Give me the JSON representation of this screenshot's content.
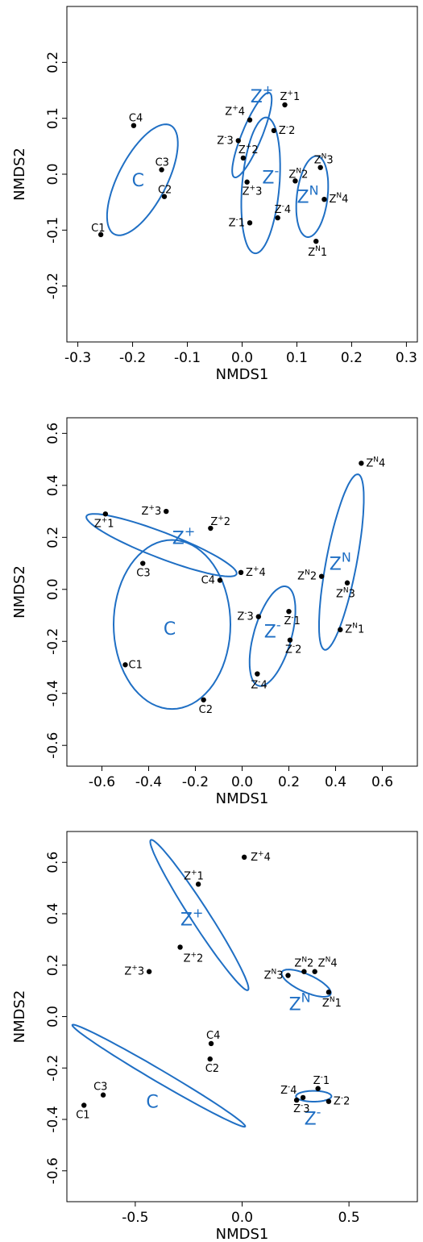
{
  "chart_data": [
    {
      "type": "scatter",
      "xlabel": "NMDS1",
      "ylabel": "NMDS2",
      "xlim": [
        -0.32,
        0.32
      ],
      "ylim": [
        -0.3,
        0.3
      ],
      "xticks": [
        "-0.3",
        "-0.2",
        "-0.1",
        "0.0",
        "0.1",
        "0.2",
        "0.3"
      ],
      "yticks": [
        "-0.2",
        "-0.1",
        "0.0",
        "0.1",
        "0.2"
      ],
      "points": [
        {
          "name": "C1",
          "x": -0.258,
          "y": -0.108
        },
        {
          "name": "C2",
          "x": -0.142,
          "y": -0.04
        },
        {
          "name": "C3",
          "x": -0.147,
          "y": 0.008
        },
        {
          "name": "C4",
          "x": -0.198,
          "y": 0.087
        },
        {
          "name": "Z+1",
          "x": 0.078,
          "y": 0.124
        },
        {
          "name": "Z+2",
          "x": 0.002,
          "y": 0.029
        },
        {
          "name": "Z+3",
          "x": 0.009,
          "y": -0.014
        },
        {
          "name": "Z+4",
          "x": 0.014,
          "y": 0.097
        },
        {
          "name": "Z-1",
          "x": 0.014,
          "y": -0.087
        },
        {
          "name": "Z-2",
          "x": 0.058,
          "y": 0.078
        },
        {
          "name": "Z-3",
          "x": -0.007,
          "y": 0.06
        },
        {
          "name": "Z-4",
          "x": 0.065,
          "y": -0.078
        },
        {
          "name": "ZN1",
          "x": 0.135,
          "y": -0.12
        },
        {
          "name": "ZN2",
          "x": 0.097,
          "y": -0.012
        },
        {
          "name": "ZN3",
          "x": 0.143,
          "y": 0.012
        },
        {
          "name": "ZN4",
          "x": 0.15,
          "y": -0.045
        }
      ],
      "groups": [
        {
          "name": "C",
          "cx": -0.182,
          "cy": -0.01,
          "a": 0.11,
          "b": 0.044,
          "rot": 62,
          "lx": -0.19,
          "ly": -0.01
        },
        {
          "name": "Z+",
          "cx": 0.018,
          "cy": 0.07,
          "a": 0.082,
          "b": 0.018,
          "rot": 67,
          "lx": 0.036,
          "ly": 0.14
        },
        {
          "name": "Z-",
          "cx": 0.034,
          "cy": -0.02,
          "a": 0.122,
          "b": 0.034,
          "rot": 85,
          "lx": 0.052,
          "ly": -0.005
        },
        {
          "name": "ZN",
          "cx": 0.128,
          "cy": -0.04,
          "a": 0.073,
          "b": 0.028,
          "rot": 83,
          "lx": 0.12,
          "ly": -0.04
        }
      ]
    },
    {
      "type": "scatter",
      "xlabel": "NMDS1",
      "ylabel": "NMDS2",
      "xlim": [
        -0.75,
        0.75
      ],
      "ylim": [
        -0.68,
        0.66
      ],
      "xticks": [
        "-0.6",
        "-0.4",
        "-0.2",
        "0.0",
        "0.2",
        "0.4",
        "0.6"
      ],
      "yticks": [
        "-0.6",
        "-0.4",
        "-0.2",
        "0.0",
        "0.2",
        "0.4",
        "0.6"
      ],
      "points": [
        {
          "name": "C1",
          "x": -0.5,
          "y": -0.29
        },
        {
          "name": "C2",
          "x": -0.165,
          "y": -0.425
        },
        {
          "name": "C3",
          "x": -0.425,
          "y": 0.1
        },
        {
          "name": "C4",
          "x": -0.095,
          "y": 0.035
        },
        {
          "name": "Z+1",
          "x": -0.585,
          "y": 0.29
        },
        {
          "name": "Z+2",
          "x": -0.135,
          "y": 0.235
        },
        {
          "name": "Z+3",
          "x": -0.325,
          "y": 0.3
        },
        {
          "name": "Z+4",
          "x": -0.005,
          "y": 0.065
        },
        {
          "name": "Z-1",
          "x": 0.2,
          "y": -0.085
        },
        {
          "name": "Z-2",
          "x": 0.205,
          "y": -0.195
        },
        {
          "name": "Z-3",
          "x": 0.07,
          "y": -0.105
        },
        {
          "name": "Z-4",
          "x": 0.065,
          "y": -0.325
        },
        {
          "name": "ZN1",
          "x": 0.42,
          "y": -0.155
        },
        {
          "name": "ZN2",
          "x": 0.34,
          "y": 0.05
        },
        {
          "name": "ZN3",
          "x": 0.45,
          "y": 0.025
        },
        {
          "name": "ZN4",
          "x": 0.51,
          "y": 0.485
        }
      ],
      "groups": [
        {
          "name": "C",
          "cx": -0.3,
          "cy": -0.135,
          "a": 0.325,
          "b": 0.25,
          "rot": 90,
          "lx": -0.31,
          "ly": -0.15
        },
        {
          "name": "Z+",
          "cx": -0.345,
          "cy": 0.17,
          "a": 0.34,
          "b": 0.05,
          "rot": -19,
          "lx": -0.25,
          "ly": 0.2
        },
        {
          "name": "Z-",
          "cx": 0.13,
          "cy": -0.18,
          "a": 0.2,
          "b": 0.08,
          "rot": 72,
          "lx": 0.13,
          "ly": -0.16
        },
        {
          "name": "ZN",
          "cx": 0.425,
          "cy": 0.105,
          "a": 0.345,
          "b": 0.065,
          "rot": 78,
          "lx": 0.42,
          "ly": 0.1
        }
      ]
    },
    {
      "type": "scatter",
      "xlabel": "NMDS1",
      "ylabel": "NMDS2",
      "xlim": [
        -0.82,
        0.82
      ],
      "ylim": [
        -0.72,
        0.72
      ],
      "xticks": [
        "-0.5",
        "0.0",
        "0.5"
      ],
      "yticks": [
        "-0.6",
        "-0.4",
        "-0.2",
        "0.0",
        "0.2",
        "0.4",
        "0.6"
      ],
      "points": [
        {
          "name": "C1",
          "x": -0.74,
          "y": -0.345
        },
        {
          "name": "C2",
          "x": -0.15,
          "y": -0.165
        },
        {
          "name": "C3",
          "x": -0.65,
          "y": -0.305
        },
        {
          "name": "C4",
          "x": -0.145,
          "y": -0.105
        },
        {
          "name": "Z+1",
          "x": -0.205,
          "y": 0.515
        },
        {
          "name": "Z+2",
          "x": -0.29,
          "y": 0.27
        },
        {
          "name": "Z+3",
          "x": -0.435,
          "y": 0.175
        },
        {
          "name": "Z+4",
          "x": 0.01,
          "y": 0.62
        },
        {
          "name": "Z-1",
          "x": 0.355,
          "y": -0.28
        },
        {
          "name": "Z-2",
          "x": 0.405,
          "y": -0.33
        },
        {
          "name": "Z-3",
          "x": 0.285,
          "y": -0.315
        },
        {
          "name": "Z-4",
          "x": 0.255,
          "y": -0.325
        },
        {
          "name": "ZN1",
          "x": 0.405,
          "y": 0.095
        },
        {
          "name": "ZN2",
          "x": 0.29,
          "y": 0.175
        },
        {
          "name": "ZN3",
          "x": 0.215,
          "y": 0.16
        },
        {
          "name": "ZN4",
          "x": 0.34,
          "y": 0.175
        }
      ],
      "groups": [
        {
          "name": "C",
          "cx": -0.39,
          "cy": -0.23,
          "a": 0.45,
          "b": 0.025,
          "rot": -26,
          "lx": -0.42,
          "ly": -0.33
        },
        {
          "name": "Z+",
          "cx": -0.2,
          "cy": 0.395,
          "a": 0.37,
          "b": 0.04,
          "rot": -52,
          "lx": -0.235,
          "ly": 0.38
        },
        {
          "name": "Z-",
          "cx": 0.335,
          "cy": -0.31,
          "a": 0.083,
          "b": 0.021,
          "rot": 0,
          "lx": 0.33,
          "ly": -0.395
        },
        {
          "name": "ZN",
          "cx": 0.3,
          "cy": 0.13,
          "a": 0.122,
          "b": 0.035,
          "rot": -20,
          "lx": 0.27,
          "ly": 0.05
        }
      ]
    }
  ]
}
